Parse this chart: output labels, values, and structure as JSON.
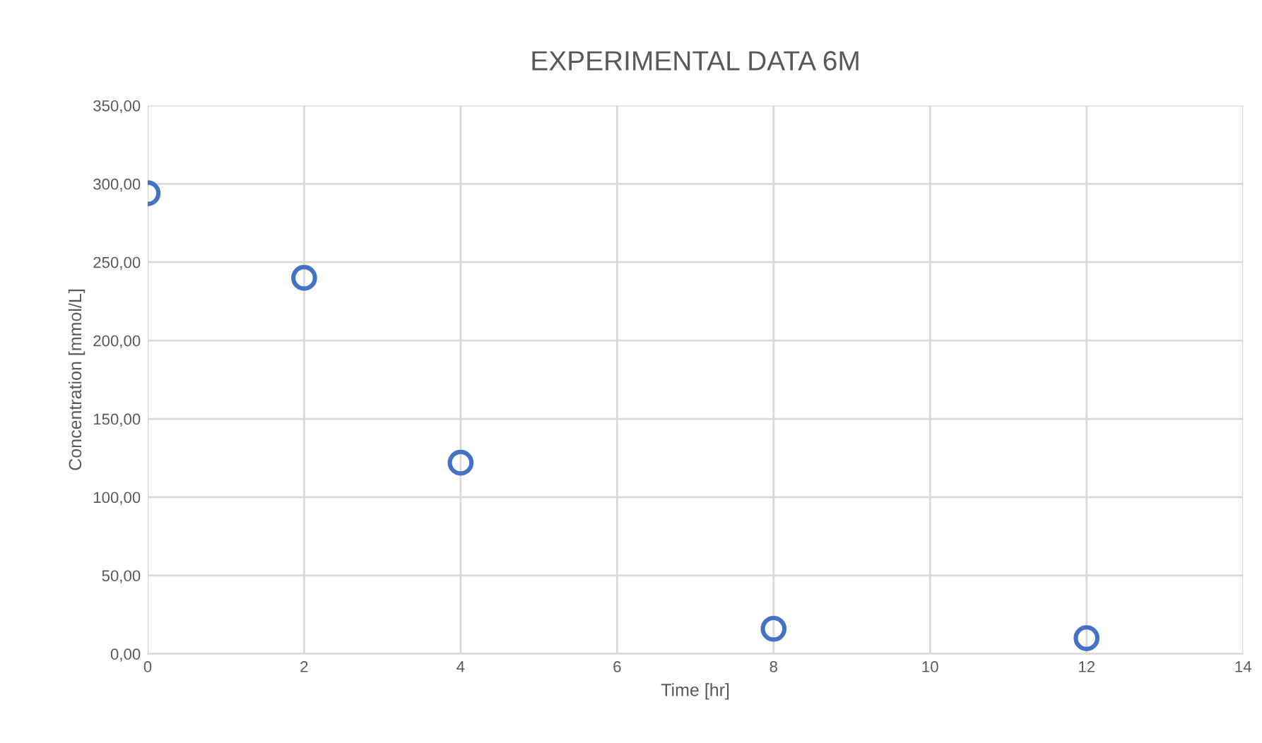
{
  "chart_data": {
    "type": "scatter",
    "title": "EXPERIMENTAL DATA 6M",
    "xlabel": "Time [hr]",
    "ylabel": "Concentration [mmol/L]",
    "x": [
      0,
      2,
      4,
      8,
      12
    ],
    "series": [
      {
        "color": "#4472c4",
        "values": [
          294,
          240,
          122,
          16,
          10
        ]
      }
    ],
    "marker": "circle",
    "grid": true,
    "xlim": [
      0,
      14
    ],
    "xticks": [
      0,
      2,
      4,
      6,
      8,
      10,
      12,
      14
    ],
    "ylim": [
      0,
      350
    ],
    "yticks": [
      {
        "value": 0,
        "label": "0,00"
      },
      {
        "value": 50,
        "label": "50,00"
      },
      {
        "value": 100,
        "label": "100,00"
      },
      {
        "value": 150,
        "label": "150,00"
      },
      {
        "value": 200,
        "label": "200,00"
      },
      {
        "value": 250,
        "label": "250,00"
      },
      {
        "value": 300,
        "label": "300,00"
      },
      {
        "value": 350,
        "label": "350,00"
      }
    ]
  }
}
